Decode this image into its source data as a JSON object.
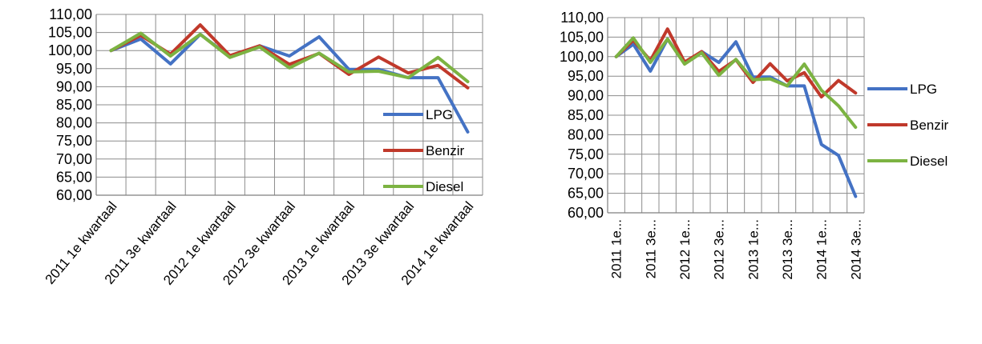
{
  "chart_data": [
    {
      "type": "line",
      "ylim": [
        60,
        110
      ],
      "ytick_step": 5,
      "grid": true,
      "ytick_labels": [
        "60,00",
        "65,00",
        "70,00",
        "75,00",
        "80,00",
        "85,00",
        "90,00",
        "95,00",
        "100,00",
        "105,00",
        "110,00"
      ],
      "categories": [
        "2011 1e kwartaal",
        "2011 2e kwartaal",
        "2011 3e kwartaal",
        "2011 4e kwartaal",
        "2012 1e kwartaal",
        "2012 2e kwartaal",
        "2012 3e kwartaal",
        "2012 4e kwartaal",
        "2013 1e kwartaal",
        "2013 2e kwartaal",
        "2013 3e kwartaal",
        "2013 4e kwartaal",
        "2014 1e kwartaal"
      ],
      "shown_category_labels": [
        "2011 1e kwartaal",
        "2011 3e kwartaal",
        "2012 1e kwartaal",
        "2012 3e kwartaal",
        "2013 1e kwartaal",
        "2013 3e kwartaal",
        "2014 1e kwartaal"
      ],
      "legend_position": "right, overlapping plot",
      "series": [
        {
          "name": "LPG",
          "color": "#4472C4",
          "values": [
            100.0,
            103.2,
            96.3,
            104.5,
            98.3,
            101.3,
            98.5,
            103.8,
            94.8,
            94.8,
            92.5,
            92.5,
            77.5
          ]
        },
        {
          "name": "Benzir",
          "color": "#C0392B",
          "values": [
            100.0,
            104.2,
            99.0,
            107.1,
            98.6,
            101.3,
            96.2,
            99.2,
            93.4,
            98.2,
            93.8,
            95.9,
            89.7
          ]
        },
        {
          "name": "Diesel",
          "color": "#7CB342",
          "values": [
            100.0,
            104.8,
            98.5,
            104.5,
            98.1,
            101.0,
            95.2,
            99.3,
            94.1,
            94.3,
            92.5,
            98.1,
            91.4
          ]
        }
      ]
    },
    {
      "type": "line",
      "ylim": [
        60,
        110
      ],
      "ytick_step": 5,
      "grid": true,
      "ytick_labels": [
        "60,00",
        "65,00",
        "70,00",
        "75,00",
        "80,00",
        "85,00",
        "90,00",
        "95,00",
        "100,00",
        "105,00",
        "110,00"
      ],
      "categories": [
        "2011 1e...",
        "2011 2e...",
        "2011 3e...",
        "2011 4e...",
        "2012 1e...",
        "2012 2e...",
        "2012 3e...",
        "2012 4e...",
        "2013 1e...",
        "2013 2e...",
        "2013 3e...",
        "2013 4e...",
        "2014 1e...",
        "2014 2e...",
        "2014 3e..."
      ],
      "shown_category_labels": [
        "2011 1e...",
        "2011 3e...",
        "2012 1e...",
        "2012 3e...",
        "2013 1e...",
        "2013 3e...",
        "2014 1e...",
        "2014 3e..."
      ],
      "legend_position": "right",
      "series": [
        {
          "name": "LPG",
          "color": "#4472C4",
          "values": [
            100.0,
            103.2,
            96.3,
            104.5,
            98.3,
            101.3,
            98.5,
            103.8,
            94.8,
            94.8,
            92.5,
            92.5,
            77.5,
            74.7,
            64.2
          ]
        },
        {
          "name": "Benzir",
          "color": "#C0392B",
          "values": [
            100.0,
            104.2,
            99.0,
            107.1,
            98.6,
            101.3,
            96.2,
            99.2,
            93.4,
            98.2,
            93.8,
            95.9,
            89.7,
            93.9,
            90.7
          ]
        },
        {
          "name": "Diesel",
          "color": "#7CB342",
          "values": [
            100.0,
            104.8,
            98.5,
            104.5,
            98.1,
            101.0,
            95.2,
            99.3,
            94.1,
            94.3,
            92.5,
            98.1,
            91.4,
            87.4,
            81.9
          ]
        }
      ]
    }
  ]
}
